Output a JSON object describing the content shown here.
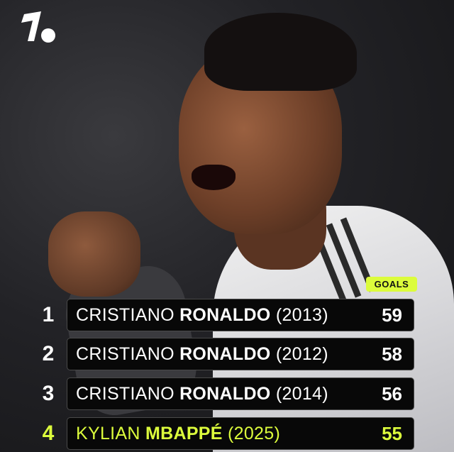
{
  "brand": {
    "logo_text": "1.",
    "accent_color": "#dcfc3c"
  },
  "header_label": "GOALS",
  "rows": [
    {
      "rank": "1",
      "first": "CRISTIANO",
      "last": "RONALDO",
      "year": "(2013)",
      "goals": "59",
      "highlight": false
    },
    {
      "rank": "2",
      "first": "CRISTIANO",
      "last": "RONALDO",
      "year": "(2012)",
      "goals": "58",
      "highlight": false
    },
    {
      "rank": "3",
      "first": "CRISTIANO",
      "last": "RONALDO",
      "year": "(2014)",
      "goals": "56",
      "highlight": false
    },
    {
      "rank": "4",
      "first": "KYLIAN",
      "last": "MBAPPÉ",
      "year": "(2025)",
      "goals": "55",
      "highlight": true
    }
  ]
}
